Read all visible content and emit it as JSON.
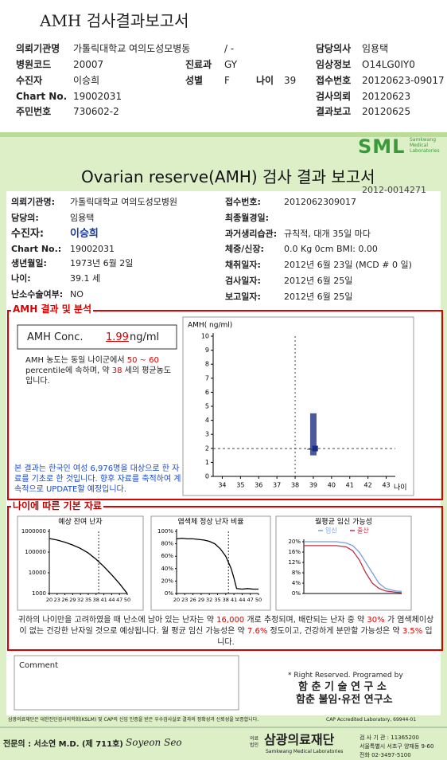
{
  "header": {
    "title": "AMH 검사결과보고서",
    "ward": "/ -",
    "fields": [
      {
        "label": "의뢰기관명",
        "value": "가톨릭대학교 여의도성모병동"
      },
      {
        "label": "담당의사",
        "value": "임용택"
      },
      {
        "label": "병원코드",
        "value": "20007"
      },
      {
        "label": "진료과",
        "value": "GY"
      },
      {
        "label": "임상정보",
        "value": "O14LG0IY0"
      },
      {
        "label": "수진자",
        "value": "이승희"
      },
      {
        "label": "성별",
        "value": "F"
      },
      {
        "label": "나이",
        "value": "39"
      },
      {
        "label": "접수번호",
        "value": "20120623-09017"
      },
      {
        "label": "Chart No.",
        "value": "19002031"
      },
      {
        "label": "검사의뢰",
        "value": "20120623"
      },
      {
        "label": "주민번호",
        "value": "730602-2"
      },
      {
        "label": "결과보고",
        "value": "20120625"
      }
    ]
  },
  "report": {
    "logo": "SML",
    "logo_sub": "Samkwang Medical Laboratories",
    "title": "Ovarian reserve(AMH) 검사 결과 보고서",
    "report_no": "2012-0014271",
    "info_left": [
      {
        "label": "의뢰기관명:",
        "value": "가톨릭대학교 여의도성모병원"
      },
      {
        "label": "담당의:",
        "value": "임용택"
      },
      {
        "label": "수진자:",
        "value": "이승희"
      },
      {
        "label": "Chart No.:",
        "value": "19002031"
      },
      {
        "label": "생년월일:",
        "value": "1973년 6월 2일"
      },
      {
        "label": "나이:",
        "value": "39.1 세"
      },
      {
        "label": "난소수술여부:",
        "value": "NO"
      }
    ],
    "info_right": [
      {
        "label": "접수번호:",
        "value": "2012062309017"
      },
      {
        "label": "최종월경일:"
      },
      {
        "label": "과거생리습관:",
        "value": "규칙적, 대개   35일 마다"
      },
      {
        "label": "체중/신장:",
        "value": "0.0 Kg      0cm   BMI:  0.00"
      },
      {
        "label": "채취일자:",
        "value": "2012년 6월 23일   (MCD #  0 일)"
      },
      {
        "label": "검사일자:",
        "value": "2012년 6월 25일"
      },
      {
        "label": "보고일자:",
        "value": "2012년 6월 25일"
      }
    ],
    "amh": {
      "section_title": "AMH 결과 및 분석",
      "conc_label": "AMH Conc.",
      "conc_value": "1.99",
      "conc_unit": "ng/ml",
      "desc": [
        "AMH 농도는 동일 나이군에서",
        "50 ~ 60",
        "percentile에 속하며, 약",
        "38",
        "세의 평균농도 입니다."
      ],
      "note": "본 결과는 한국인 여성 6,976명을 대상으로 한 자료를 기초로 한 것입니다. 향후 자료를 축적하여 계속적으로 UPDATE할 예정입니다.",
      "chart": {
        "type": "range",
        "ylabel": "AMH( ng/ml)",
        "xlabel": "나이",
        "xlim": [
          33.5,
          43.5
        ],
        "xticks": [
          34,
          35,
          36,
          37,
          38,
          39,
          40,
          41,
          42,
          43
        ],
        "ylim": [
          0,
          10
        ],
        "yticks": [
          0,
          1,
          2,
          3,
          4,
          5,
          6,
          7,
          8,
          9,
          10
        ],
        "range": {
          "x": 39,
          "low": 1.5,
          "high": 4.5
        },
        "point": {
          "x": 39.1,
          "y": 1.99
        },
        "reference_age": 38,
        "color": "#4a5a9a"
      }
    },
    "basic": {
      "section_title": "나이에 따른 기본 자료",
      "charts": [
        {
          "type": "line",
          "title": "예상 잔여 난자",
          "log_scale": true,
          "xlim": [
            20,
            50
          ],
          "xticks": [
            20,
            23,
            26,
            29,
            32,
            35,
            38,
            41,
            44,
            47,
            50
          ],
          "ylim": [
            1000,
            1000000
          ],
          "yticks": [
            1000,
            10000,
            100000,
            1000000
          ],
          "age_line": 39,
          "series": [
            {
              "color": "#000000",
              "x": [
                20,
                23,
                26,
                29,
                32,
                35,
                38,
                41,
                44,
                47,
                50
              ],
              "values": [
                450000,
                380000,
                300000,
                220000,
                150000,
                90000,
                45000,
                20000,
                8000,
                3000,
                1000
              ]
            }
          ]
        },
        {
          "type": "line",
          "title": "염색체 정상 난자 비율",
          "log_scale": false,
          "xlim": [
            20,
            50
          ],
          "xticks": [
            20,
            23,
            26,
            29,
            32,
            35,
            38,
            41,
            44,
            47,
            50
          ],
          "ylim": [
            0,
            100
          ],
          "yticks": [
            {
              "value": 0,
              "label": "0%"
            },
            {
              "value": 20,
              "label": "20%"
            },
            {
              "value": 40,
              "label": "40%"
            },
            {
              "value": 60,
              "label": "60%"
            },
            {
              "value": 80,
              "label": "80%"
            },
            {
              "value": 100,
              "label": "100%"
            }
          ],
          "age_line": 39,
          "series": [
            {
              "color": "#000000",
              "x": [
                20,
                22,
                24,
                26,
                28,
                30,
                32,
                34,
                36,
                38,
                40,
                41,
                42,
                44,
                46,
                48,
                50
              ],
              "values": [
                88,
                89,
                88,
                88,
                87,
                86,
                84,
                80,
                72,
                60,
                40,
                25,
                8,
                7,
                8,
                7,
                7
              ]
            }
          ]
        },
        {
          "type": "line",
          "title": "월평균 임신 가능성",
          "log_scale": false,
          "xlim": [
            20,
            50
          ],
          "ylim": [
            0,
            20
          ],
          "yticks": [
            {
              "value": 0,
              "label": "0%"
            },
            {
              "value": 4,
              "label": "4%"
            },
            {
              "value": 8,
              "label": "8%"
            },
            {
              "value": 12,
              "label": "12%"
            },
            {
              "value": 16,
              "label": "16%"
            },
            {
              "value": 20,
              "label": "20%"
            }
          ],
          "series": [
            {
              "name": "임신",
              "color": "#7a9ee0",
              "x": [
                20,
                25,
                30,
                33,
                35,
                37,
                39,
                41,
                43,
                45,
                48,
                50
              ],
              "values": [
                20,
                20,
                20,
                19.5,
                18.5,
                16,
                12,
                8,
                4,
                2,
                1,
                0.8
              ]
            },
            {
              "name": "출산",
              "color": "#c0304a",
              "x": [
                20,
                25,
                30,
                33,
                35,
                37,
                39,
                41,
                43,
                45,
                48,
                50
              ],
              "values": [
                18.5,
                18.5,
                18.5,
                18,
                16.5,
                13,
                8,
                4,
                2,
                1,
                0.5,
                0.3
              ]
            }
          ]
        }
      ],
      "summary": [
        "귀하의 나이만을 고려하였을 때 난소에 남아 있는 난자는 약",
        "16,000",
        "개로 추정되며, 배란되는 난자 중 약",
        "30%",
        "가 염색체이상이 없는 건강한 난자일 것으로 예상됩니다. 월 평균 임신 가능성은 약",
        "7.6%",
        "정도이고, 건강하게 분만할 가능성은 약",
        "3.5%",
        "입니다."
      ]
    },
    "comment_label": "Comment",
    "credit": [
      "* Right Reserved. Programed by",
      "함 춘 기 술 연 구 소",
      "함춘 불임·유전 연구소"
    ],
    "footer": {
      "accreditation": "삼광의료재단은 대한진단검사의학회(KSLM) 및 CAP의 신임 인증을 받은 우수검사실로 결과의 정확성과 신뢰성을 보증합니다.",
      "cap": "CAP  Accredited  Laboratory,  69944-01",
      "doctor": "전문의 : 서소연 M.D. (제 711호)",
      "signature": "Soyeon Seo",
      "org_prefix": "의료법인",
      "org": "삼광의료재단",
      "org_en": "Samkwang Medical Laboratories",
      "contact": [
        "검 사 기 관 : 11365200",
        "서울특별시 서초구 양재동 9-60",
        "전화 02-3497-5100"
      ]
    }
  }
}
